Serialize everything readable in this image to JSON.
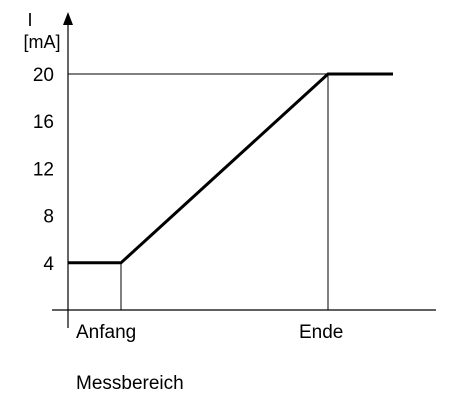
{
  "chart_data": {
    "type": "line",
    "ylabel_symbol": "I",
    "ylabel_unit": "[mA]",
    "xlabel": "Messbereich",
    "y_ticks": [
      4,
      8,
      12,
      16,
      20
    ],
    "x_ticks": [
      "Anfang",
      "Ende"
    ],
    "series": [
      {
        "points": [
          {
            "x": "start of axis",
            "y": 4
          },
          {
            "x": "Anfang",
            "y": 4
          },
          {
            "x": "Ende",
            "y": 20
          },
          {
            "x": "beyond Ende",
            "y": 20
          }
        ]
      }
    ],
    "ylim": [
      0,
      20
    ],
    "grid": false,
    "reference_lines": [
      {
        "orientation": "horizontal",
        "y": 20
      },
      {
        "orientation": "vertical",
        "x": "Anfang"
      },
      {
        "orientation": "vertical",
        "x": "Ende"
      }
    ]
  }
}
